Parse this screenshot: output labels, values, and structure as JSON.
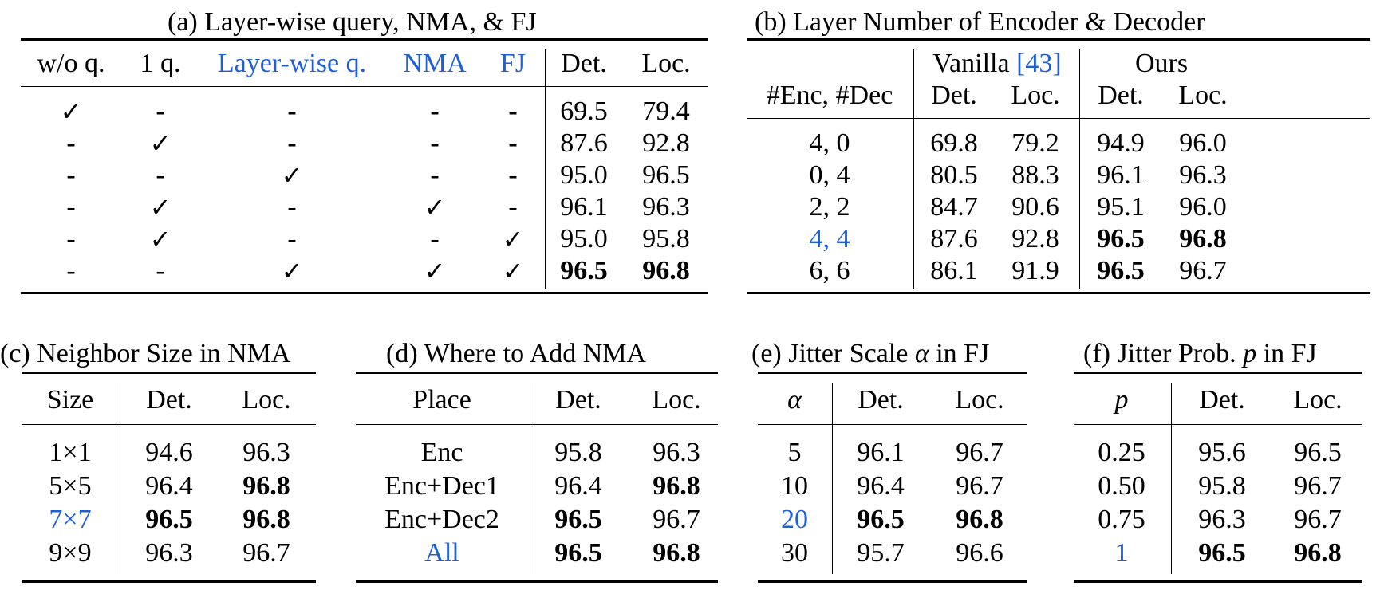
{
  "table_a": {
    "caption": "(a) Layer-wise query, NMA, & FJ",
    "headers": [
      "w/o q.",
      "1 q.",
      "Layer-wise q.",
      "NMA",
      "FJ",
      "Det.",
      "Loc."
    ],
    "rows": [
      [
        "✓",
        "-",
        "-",
        "-",
        "-",
        "69.5",
        "79.4"
      ],
      [
        "-",
        "✓",
        "-",
        "-",
        "-",
        "87.6",
        "92.8"
      ],
      [
        "-",
        "-",
        "✓",
        "-",
        "-",
        "95.0",
        "96.5"
      ],
      [
        "-",
        "✓",
        "-",
        "✓",
        "-",
        "96.1",
        "96.3"
      ],
      [
        "-",
        "✓",
        "-",
        "-",
        "✓",
        "95.0",
        "95.8"
      ],
      [
        "-",
        "-",
        "✓",
        "✓",
        "✓",
        "96.5",
        "96.8"
      ]
    ]
  },
  "table_b": {
    "caption": "(b) Layer Number of Encoder & Decoder",
    "row_header": "#Enc, #Dec",
    "group_vanilla": "Vanilla ",
    "group_vanilla_ref": "[43]",
    "group_ours": "Ours",
    "sub_headers": [
      "Det.",
      "Loc.",
      "Det.",
      "Loc."
    ],
    "rows": [
      [
        "4, 0",
        "69.8",
        "79.2",
        "94.9",
        "96.0"
      ],
      [
        "0, 4",
        "80.5",
        "88.3",
        "96.1",
        "96.3"
      ],
      [
        "2, 2",
        "84.7",
        "90.6",
        "95.1",
        "96.0"
      ],
      [
        "4, 4",
        "87.6",
        "92.8",
        "96.5",
        "96.8"
      ],
      [
        "6, 6",
        "86.1",
        "91.9",
        "96.5",
        "96.7"
      ]
    ]
  },
  "table_c": {
    "caption": "(c) Neighbor Size in NMA",
    "headers": [
      "Size",
      "Det.",
      "Loc."
    ],
    "rows": [
      [
        "1×1",
        "94.6",
        "96.3"
      ],
      [
        "5×5",
        "96.4",
        "96.8"
      ],
      [
        "7×7",
        "96.5",
        "96.8"
      ],
      [
        "9×9",
        "96.3",
        "96.7"
      ]
    ]
  },
  "table_d": {
    "caption": "(d) Where to Add NMA",
    "headers": [
      "Place",
      "Det.",
      "Loc."
    ],
    "rows": [
      [
        "Enc",
        "95.8",
        "96.3"
      ],
      [
        "Enc+Dec1",
        "96.4",
        "96.8"
      ],
      [
        "Enc+Dec2",
        "96.5",
        "96.7"
      ],
      [
        "All",
        "96.5",
        "96.8"
      ]
    ]
  },
  "table_e": {
    "caption_pre": "(e) Jitter Scale ",
    "caption_sym": "α",
    "caption_post": " in FJ",
    "headers": [
      "α",
      "Det.",
      "Loc."
    ],
    "rows": [
      [
        "5",
        "96.1",
        "96.7"
      ],
      [
        "10",
        "96.4",
        "96.7"
      ],
      [
        "20",
        "96.5",
        "96.8"
      ],
      [
        "30",
        "95.7",
        "96.6"
      ]
    ]
  },
  "table_f": {
    "caption_pre": "(f) Jitter Prob. ",
    "caption_sym": "p",
    "caption_post": " in FJ",
    "headers": [
      "p",
      "Det.",
      "Loc."
    ],
    "rows": [
      [
        "0.25",
        "95.6",
        "96.5"
      ],
      [
        "0.50",
        "95.8",
        "96.7"
      ],
      [
        "0.75",
        "96.3",
        "96.7"
      ],
      [
        "1",
        "96.5",
        "96.8"
      ]
    ]
  }
}
